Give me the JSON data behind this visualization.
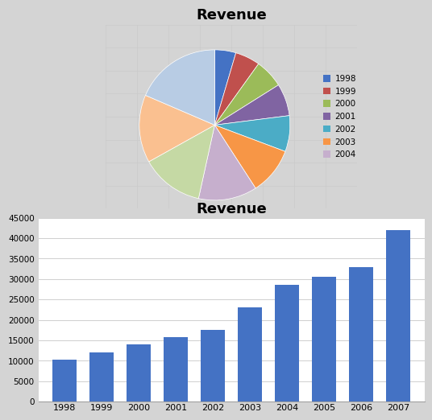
{
  "pie_title": "Revenue",
  "pie_labels": [
    "1998",
    "1999",
    "2000",
    "2001",
    "2002",
    "2003",
    "2004"
  ],
  "pie_values": [
    10300,
    12100,
    14000,
    15700,
    17500,
    23000,
    28500,
    30500,
    33000,
    42000
  ],
  "pie_colors": [
    "#4472C4",
    "#C0504D",
    "#9BBB59",
    "#8064A2",
    "#4BACC6",
    "#F79646",
    "#C6AFCD",
    "#C5D9A4",
    "#FAC090",
    "#B8CCE4"
  ],
  "pie_legend_colors": [
    "#4472C4",
    "#C0504D",
    "#9BBB59",
    "#8064A2",
    "#4BACC6",
    "#F79646",
    "#C6AFCD"
  ],
  "bar_title": "Revenue",
  "bar_years": [
    "1998",
    "1999",
    "2000",
    "2001",
    "2002",
    "2003",
    "2004",
    "2005",
    "2006",
    "2007"
  ],
  "bar_values": [
    10300,
    12100,
    14000,
    15700,
    17500,
    23000,
    28500,
    30500,
    33000,
    42000
  ],
  "bar_color": "#4472C4",
  "bar_ylim": [
    0,
    45000
  ],
  "bar_yticks": [
    0,
    5000,
    10000,
    15000,
    20000,
    25000,
    30000,
    35000,
    40000,
    45000
  ],
  "bg_color": "#FFFFFF",
  "grid_color": "#C8C8C8",
  "outer_bg": "#D4D4D4",
  "chart_border": "#A0A0A0"
}
